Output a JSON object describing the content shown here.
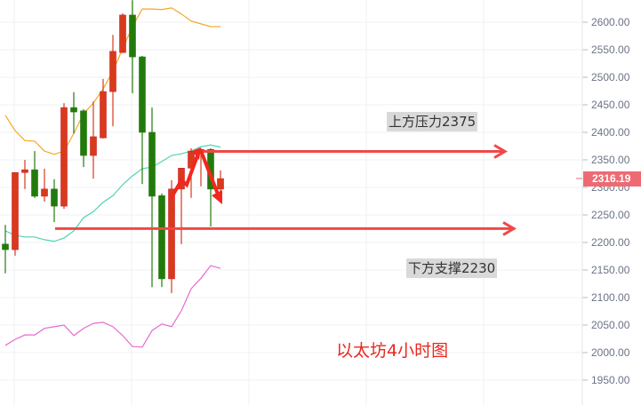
{
  "chart_data": {
    "type": "candlestick",
    "title": "以太坊4小时图",
    "ylim": [
      1925,
      2640
    ],
    "y_ticks": [
      "2600.00",
      "2550.00",
      "2500.00",
      "2450.00",
      "2400.00",
      "2350.00",
      "2300.00",
      "2250.00",
      "2200.00",
      "2150.00",
      "2100.00",
      "2050.00",
      "2000.00",
      "1950.00"
    ],
    "grid": true,
    "up_color": "#d93a1c",
    "down_color": "#237a0c",
    "last_price": "2316.19",
    "last_price_color": "#ee6a73",
    "candles": [
      {
        "o": 2197,
        "h": 2232,
        "l": 2144,
        "c": 2187
      },
      {
        "o": 2187,
        "h": 2327,
        "l": 2176,
        "c": 2327
      },
      {
        "o": 2327,
        "h": 2350,
        "l": 2297,
        "c": 2332
      },
      {
        "o": 2332,
        "h": 2366,
        "l": 2281,
        "c": 2284
      },
      {
        "o": 2284,
        "h": 2334,
        "l": 2274,
        "c": 2297
      },
      {
        "o": 2297,
        "h": 2315,
        "l": 2237,
        "c": 2266
      },
      {
        "o": 2266,
        "h": 2453,
        "l": 2261,
        "c": 2445
      },
      {
        "o": 2445,
        "h": 2473,
        "l": 2398,
        "c": 2437
      },
      {
        "o": 2439,
        "h": 2442,
        "l": 2337,
        "c": 2358
      },
      {
        "o": 2358,
        "h": 2456,
        "l": 2316,
        "c": 2392
      },
      {
        "o": 2390,
        "h": 2497,
        "l": 2389,
        "c": 2474
      },
      {
        "o": 2474,
        "h": 2577,
        "l": 2411,
        "c": 2547
      },
      {
        "o": 2545,
        "h": 2616,
        "l": 2544,
        "c": 2613
      },
      {
        "o": 2613,
        "h": 2640,
        "l": 2471,
        "c": 2537
      },
      {
        "o": 2537,
        "h": 2539,
        "l": 2306,
        "c": 2400
      },
      {
        "o": 2400,
        "h": 2445,
        "l": 2119,
        "c": 2284
      },
      {
        "o": 2285,
        "h": 2289,
        "l": 2119,
        "c": 2134
      },
      {
        "o": 2134,
        "h": 2313,
        "l": 2108,
        "c": 2297
      },
      {
        "o": 2297,
        "h": 2335,
        "l": 2197,
        "c": 2335
      },
      {
        "o": 2335,
        "h": 2371,
        "l": 2281,
        "c": 2366
      },
      {
        "o": 2366,
        "h": 2371,
        "l": 2302,
        "c": 2369
      },
      {
        "o": 2369,
        "h": 2371,
        "l": 2229,
        "c": 2297
      },
      {
        "o": 2297,
        "h": 2331,
        "l": 2290,
        "c": 2316
      }
    ],
    "bands": [
      {
        "color": "#f5a623",
        "values": [
          2431,
          2403,
          2385,
          2384,
          2366,
          2360,
          2366,
          2398,
          2434,
          2453,
          2479,
          2511,
          2552,
          2592,
          2624,
          2624,
          2623,
          2626,
          2615,
          2602,
          2597,
          2592,
          2592
        ]
      },
      {
        "color": "#4dd4b4",
        "values": [
          2221,
          2213,
          2210,
          2210,
          2205,
          2202,
          2208,
          2221,
          2245,
          2256,
          2273,
          2285,
          2305,
          2321,
          2334,
          2337,
          2347,
          2358,
          2361,
          2366,
          2374,
          2377,
          2373
        ]
      },
      {
        "color": "#e86ad0",
        "values": [
          2013,
          2024,
          2032,
          2032,
          2044,
          2047,
          2050,
          2031,
          2044,
          2053,
          2055,
          2047,
          2031,
          2011,
          2010,
          2040,
          2052,
          2047,
          2076,
          2116,
          2135,
          2158,
          2153
        ]
      }
    ],
    "annotations": {
      "resistance": {
        "label": "上方压力2375",
        "price": 2375,
        "color": "#f04848"
      },
      "support": {
        "label": "下方支撑2230",
        "price": 2230,
        "color": "#f04848"
      }
    }
  }
}
